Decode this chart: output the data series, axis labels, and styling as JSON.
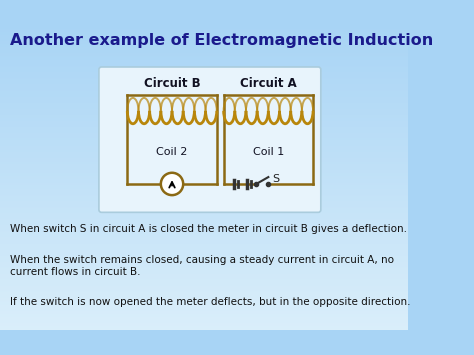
{
  "title": "Another example of Electromagnetic Induction",
  "title_color": "#1a1a8c",
  "bg_color_top": "#a8d4f5",
  "bg_color_bottom": "#daeefa",
  "diagram_bg": "#e8f4fc",
  "coil_color": "#b8860b",
  "wire_color": "#8B6914",
  "label_circuit_b": "Circuit B",
  "label_circuit_a": "Circuit A",
  "label_coil2": "Coil 2",
  "label_coil1": "Coil 1",
  "label_s": "S",
  "text1": "When switch S in circuit A is closed the meter in circuit B gives a deflection.",
  "text2": "When the switch remains closed, causing a steady current in circuit A, no\ncurrent flows in circuit B.",
  "text3": "If the switch is now opened the meter deflects, but in the opposite direction.",
  "text_color": "#111111",
  "text_fontsize": 7.5,
  "title_fontsize": 11.5
}
